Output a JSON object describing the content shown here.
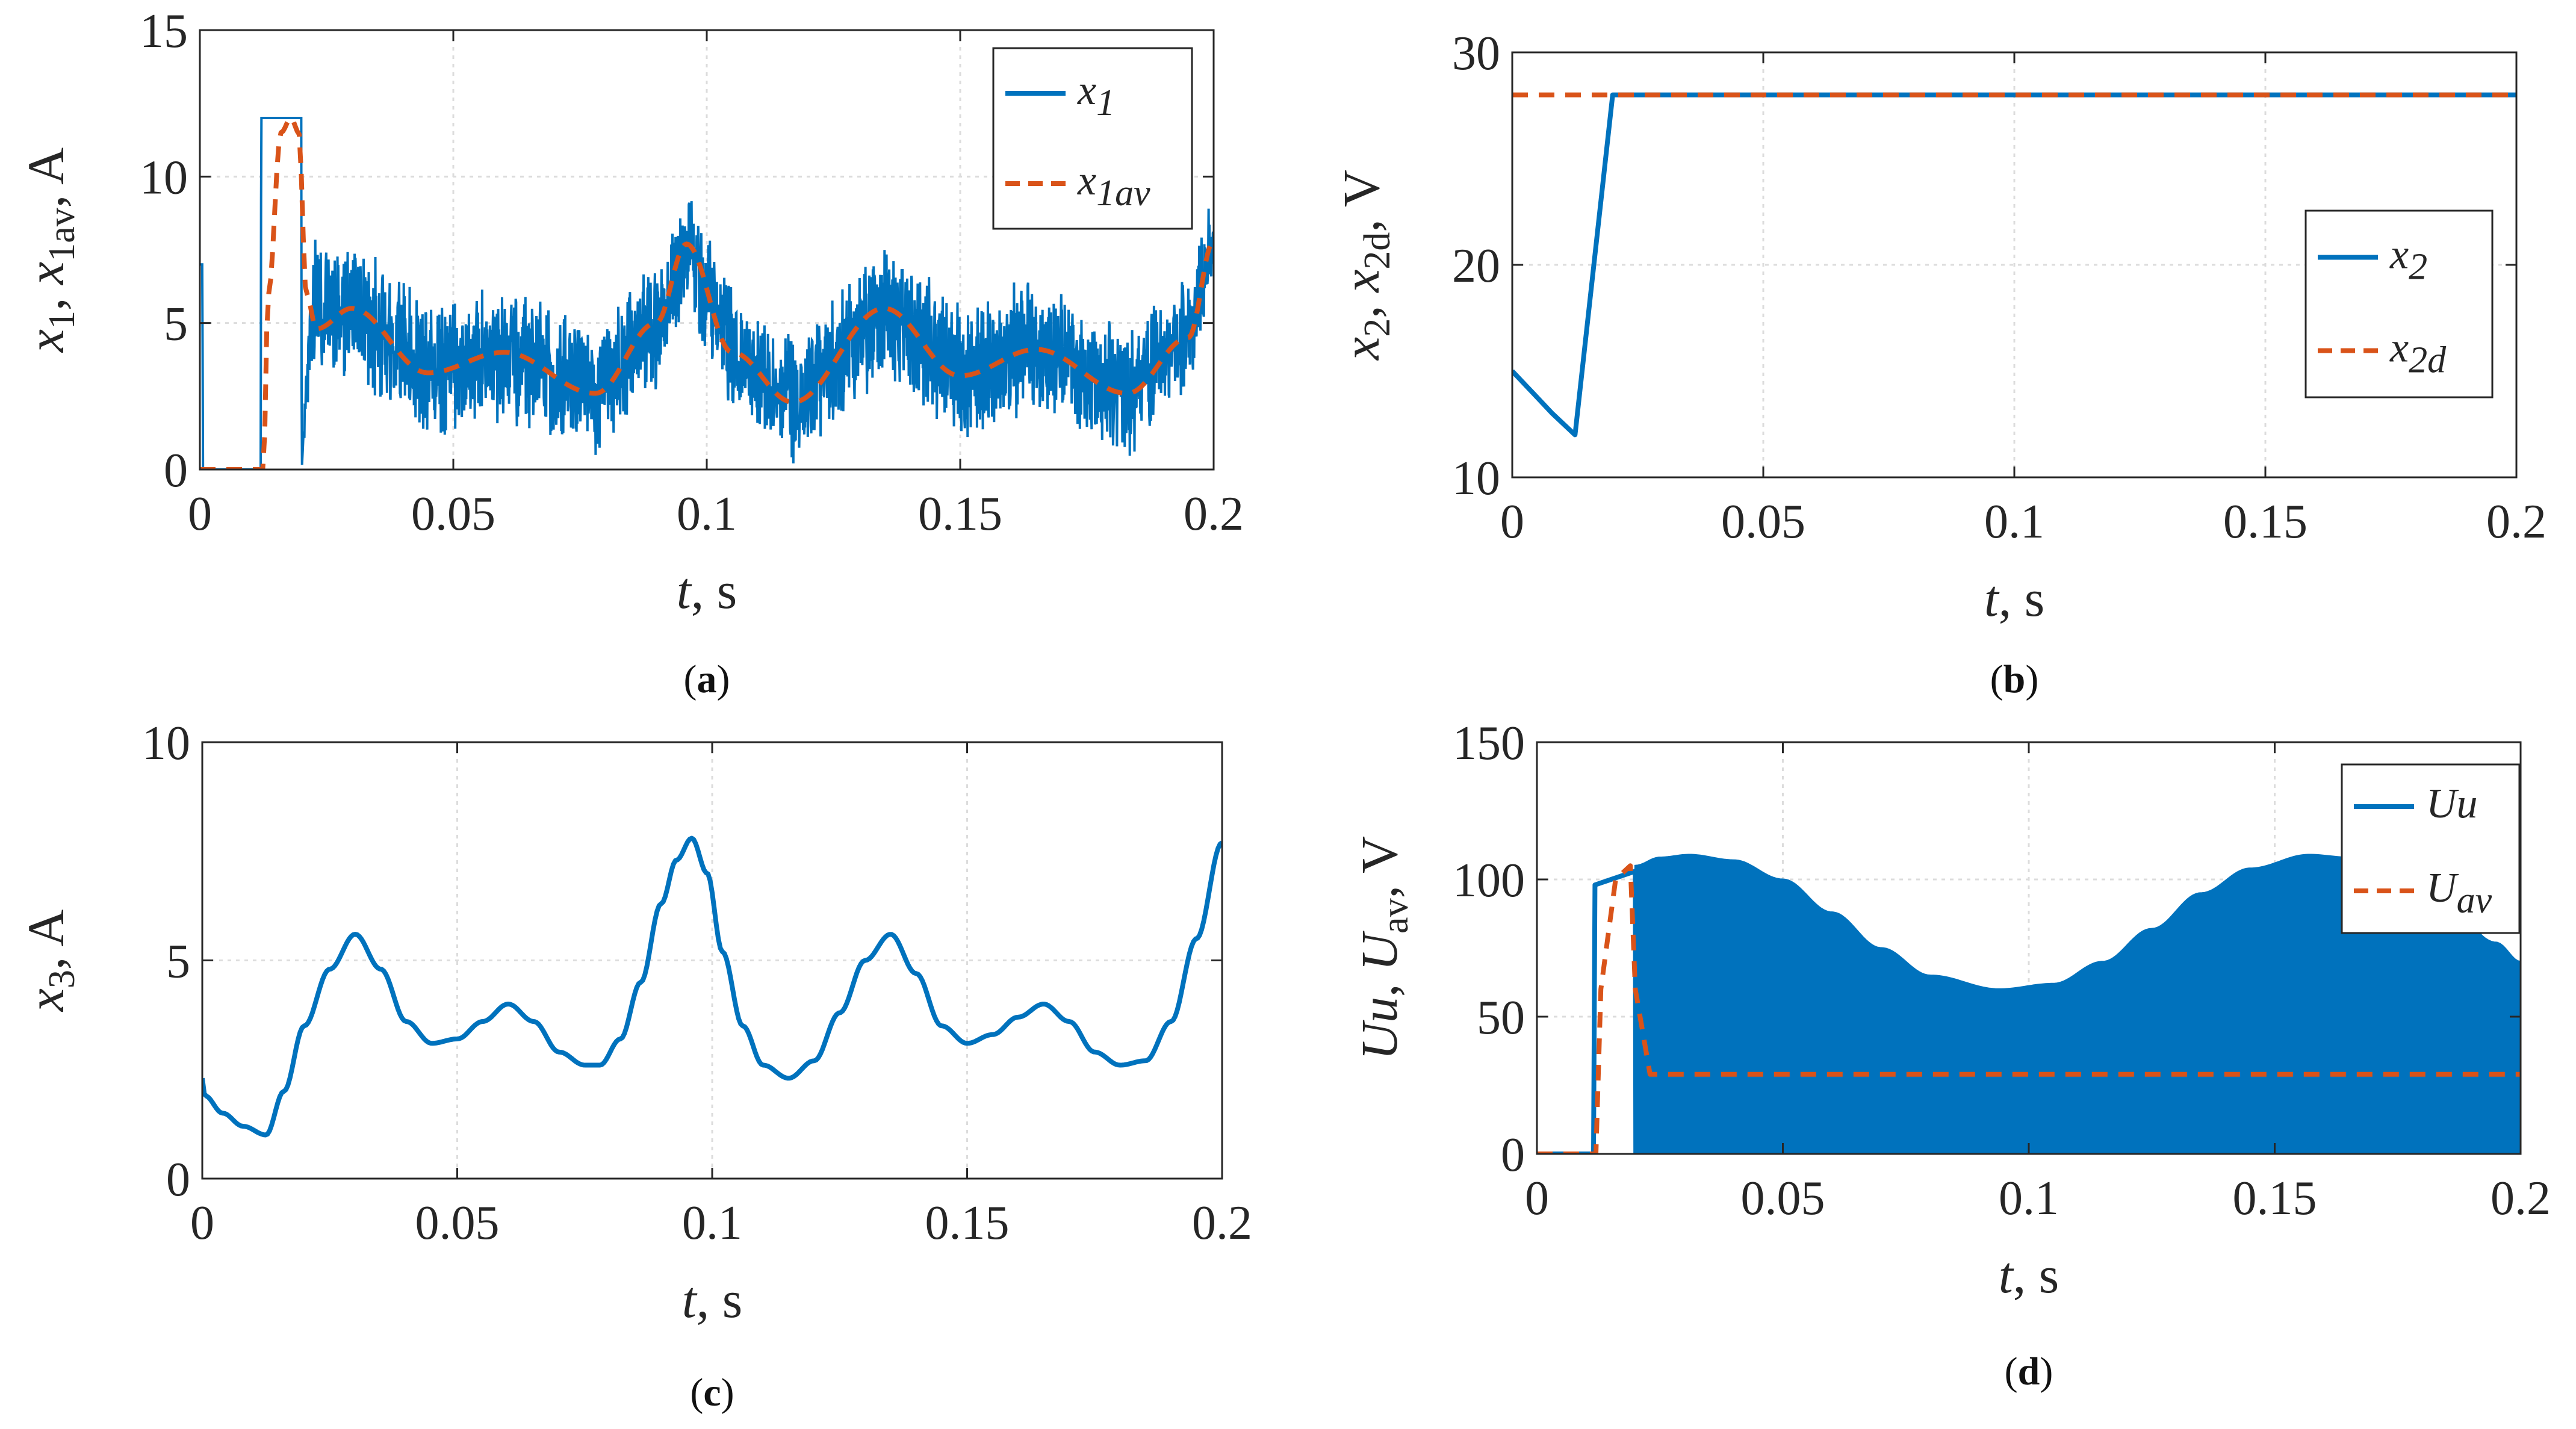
{
  "colors": {
    "blue": "#0072BD",
    "orange": "#D95319",
    "grid": "#dcdcdc",
    "axis": "#262626"
  },
  "chart_data": [
    {
      "id": "a",
      "type": "line",
      "caption": "a",
      "xlabel": {
        "main": "t",
        "rest": ", s"
      },
      "ylabel": {
        "parts": [
          [
            "x",
            "i"
          ],
          [
            "1",
            "s"
          ],
          [
            ", ",
            "n"
          ],
          [
            "x",
            "i"
          ],
          [
            "1av",
            "s"
          ],
          [
            ", A",
            "n"
          ]
        ]
      },
      "xlim": [
        0,
        0.2
      ],
      "ylim": [
        0,
        15
      ],
      "xticks": [
        0,
        0.05,
        0.1,
        0.15,
        0.2
      ],
      "xticklabels": [
        "0",
        "0.05",
        "0.1",
        "0.15",
        "0.2"
      ],
      "yticks": [
        0,
        5,
        10,
        15
      ],
      "yticklabels": [
        "0",
        "5",
        "10",
        "15"
      ],
      "legend": {
        "placement": "top-right",
        "entries": [
          {
            "base": "x",
            "sub": "1",
            "style": "solid"
          },
          {
            "base": "x",
            "sub": "1av",
            "style": "dashed"
          }
        ]
      },
      "series": [
        {
          "name": "x1",
          "color": "blue",
          "style": "solid",
          "kind": "band",
          "x": [
            0,
            0.0005,
            0.0006,
            0.012,
            0.0121,
            0.02,
            0.0201,
            0.022,
            0.03,
            0.045,
            0.06,
            0.078,
            0.09,
            0.096,
            0.105,
            0.117,
            0.135,
            0.15,
            0.165,
            0.183,
            0.195,
            0.2
          ],
          "mean": [
            7,
            7,
            0,
            0,
            12,
            12,
            0,
            5.5,
            5.5,
            3.3,
            4.0,
            2.6,
            5.0,
            7.7,
            4.0,
            2.3,
            5.5,
            3.2,
            4.1,
            2.6,
            4.5,
            7.8
          ],
          "amp": [
            0,
            0,
            0,
            0,
            0,
            0,
            0,
            2.2,
            2.4,
            2.4,
            2.4,
            2.2,
            2.2,
            2.0,
            2.2,
            2.2,
            2.4,
            2.4,
            2.4,
            2.2,
            2.0,
            1.6
          ]
        },
        {
          "name": "x1av",
          "color": "orange",
          "style": "dashed",
          "kind": "line",
          "x": [
            0,
            0.0125,
            0.0135,
            0.016,
            0.018,
            0.0195,
            0.021,
            0.023,
            0.03,
            0.045,
            0.06,
            0.078,
            0.09,
            0.096,
            0.105,
            0.117,
            0.135,
            0.15,
            0.165,
            0.183,
            0.195,
            0.2
          ],
          "y": [
            0,
            0,
            6,
            11.5,
            12,
            11.5,
            6,
            4.8,
            5.5,
            3.3,
            4.0,
            2.6,
            5.0,
            7.7,
            4.0,
            2.3,
            5.5,
            3.2,
            4.1,
            2.6,
            4.5,
            7.8
          ]
        }
      ]
    },
    {
      "id": "b",
      "type": "line",
      "caption": "b",
      "xlabel": {
        "main": "t",
        "rest": ", s"
      },
      "ylabel": {
        "parts": [
          [
            "x",
            "i"
          ],
          [
            "2",
            "s"
          ],
          [
            ", ",
            "n"
          ],
          [
            "x",
            "i"
          ],
          [
            "2d",
            "s"
          ],
          [
            ", V",
            "n"
          ]
        ]
      },
      "xlim": [
        0,
        0.2
      ],
      "ylim": [
        10,
        30
      ],
      "xticks": [
        0,
        0.05,
        0.1,
        0.15,
        0.2
      ],
      "xticklabels": [
        "0",
        "0.05",
        "0.1",
        "0.15",
        "0.2"
      ],
      "yticks": [
        10,
        20,
        30
      ],
      "yticklabels": [
        "10",
        "20",
        "30"
      ],
      "legend": {
        "placement": "right",
        "entries": [
          {
            "base": "x",
            "sub": "2",
            "style": "solid"
          },
          {
            "base": "x",
            "sub": "2d",
            "style": "dashed"
          }
        ]
      },
      "series": [
        {
          "name": "x2",
          "color": "blue",
          "style": "solid",
          "kind": "line",
          "x": [
            0,
            0.004,
            0.008,
            0.0125,
            0.02,
            0.2
          ],
          "y": [
            15,
            14,
            13,
            12,
            28,
            28
          ]
        },
        {
          "name": "x2d",
          "color": "orange",
          "style": "dashed",
          "kind": "line",
          "x": [
            0,
            0.2
          ],
          "y": [
            28,
            28
          ]
        }
      ]
    },
    {
      "id": "c",
      "type": "line",
      "caption": "c",
      "xlabel": {
        "main": "t",
        "rest": ", s"
      },
      "ylabel": {
        "parts": [
          [
            "x",
            "i"
          ],
          [
            "3",
            "s"
          ],
          [
            ", A",
            "n"
          ]
        ]
      },
      "xlim": [
        0,
        0.2
      ],
      "ylim": [
        0,
        10
      ],
      "xticks": [
        0,
        0.05,
        0.1,
        0.15,
        0.2
      ],
      "xticklabels": [
        "0",
        "0.05",
        "0.1",
        "0.15",
        "0.2"
      ],
      "yticks": [
        0,
        5,
        10
      ],
      "yticklabels": [
        "0",
        "5",
        "10"
      ],
      "legend": null,
      "series": [
        {
          "name": "x3",
          "color": "blue",
          "style": "solid",
          "kind": "line",
          "x": [
            0,
            0.0005,
            0.004,
            0.008,
            0.0125,
            0.016,
            0.02,
            0.025,
            0.03,
            0.035,
            0.04,
            0.045,
            0.05,
            0.055,
            0.06,
            0.065,
            0.07,
            0.075,
            0.078,
            0.082,
            0.086,
            0.09,
            0.093,
            0.096,
            0.099,
            0.102,
            0.106,
            0.11,
            0.115,
            0.12,
            0.125,
            0.13,
            0.135,
            0.14,
            0.145,
            0.15,
            0.155,
            0.16,
            0.165,
            0.17,
            0.175,
            0.18,
            0.185,
            0.19,
            0.195,
            0.2
          ],
          "y": [
            2.3,
            1.9,
            1.5,
            1.2,
            1.0,
            2.0,
            3.5,
            4.8,
            5.6,
            4.8,
            3.6,
            3.1,
            3.2,
            3.6,
            4.0,
            3.6,
            2.9,
            2.6,
            2.6,
            3.2,
            4.5,
            6.3,
            7.3,
            7.8,
            7.0,
            5.2,
            3.5,
            2.6,
            2.3,
            2.7,
            3.8,
            5.0,
            5.6,
            4.7,
            3.5,
            3.1,
            3.3,
            3.7,
            4.0,
            3.6,
            2.9,
            2.6,
            2.7,
            3.6,
            5.5,
            7.7
          ]
        }
      ]
    },
    {
      "id": "d",
      "type": "line",
      "caption": "d",
      "xlabel": {
        "main": "t",
        "rest": ", s"
      },
      "ylabel": {
        "parts": [
          [
            "Uu",
            "i"
          ],
          [
            ", ",
            "n"
          ],
          [
            "U",
            "i"
          ],
          [
            "av",
            "s"
          ],
          [
            ", V",
            "n"
          ]
        ]
      },
      "xlim": [
        0,
        0.2
      ],
      "ylim": [
        0,
        150
      ],
      "xticks": [
        0,
        0.05,
        0.1,
        0.15,
        0.2
      ],
      "xticklabels": [
        "0",
        "0.05",
        "0.1",
        "0.15",
        "0.2"
      ],
      "yticks": [
        0,
        50,
        100,
        150
      ],
      "yticklabels": [
        "0",
        "50",
        "100",
        "150"
      ],
      "legend": {
        "placement": "top-right",
        "entries": [
          {
            "base": "Uu",
            "sub": "",
            "style": "solid"
          },
          {
            "base": "U",
            "sub": "av",
            "style": "dashed"
          }
        ]
      },
      "series": [
        {
          "name": "Uu",
          "color": "blue",
          "style": "solid",
          "kind": "line",
          "x": [
            0,
            0.0115,
            0.0118,
            0.02,
            0.0201
          ],
          "y": [
            0,
            0,
            98,
            103,
            0
          ]
        },
        {
          "name": "Uu-envelope",
          "color": "blue",
          "style": "solid",
          "kind": "fill",
          "x": [
            0.02,
            0.025,
            0.031,
            0.04,
            0.05,
            0.06,
            0.07,
            0.08,
            0.094,
            0.105,
            0.115,
            0.125,
            0.135,
            0.145,
            0.157,
            0.165,
            0.175,
            0.185,
            0.195,
            0.2
          ],
          "y": [
            105,
            108,
            109,
            107,
            100,
            88,
            75,
            65,
            60,
            62,
            70,
            82,
            95,
            104,
            109,
            108,
            102,
            90,
            77,
            70
          ],
          "base": 0
        },
        {
          "name": "Uav",
          "color": "orange",
          "style": "dashed",
          "kind": "line",
          "x": [
            0,
            0.012,
            0.013,
            0.016,
            0.019,
            0.02,
            0.023,
            0.05,
            0.1,
            0.15,
            0.2
          ],
          "y": [
            0,
            0,
            60,
            100,
            105,
            60,
            29,
            29,
            29,
            29,
            29
          ]
        }
      ]
    }
  ]
}
